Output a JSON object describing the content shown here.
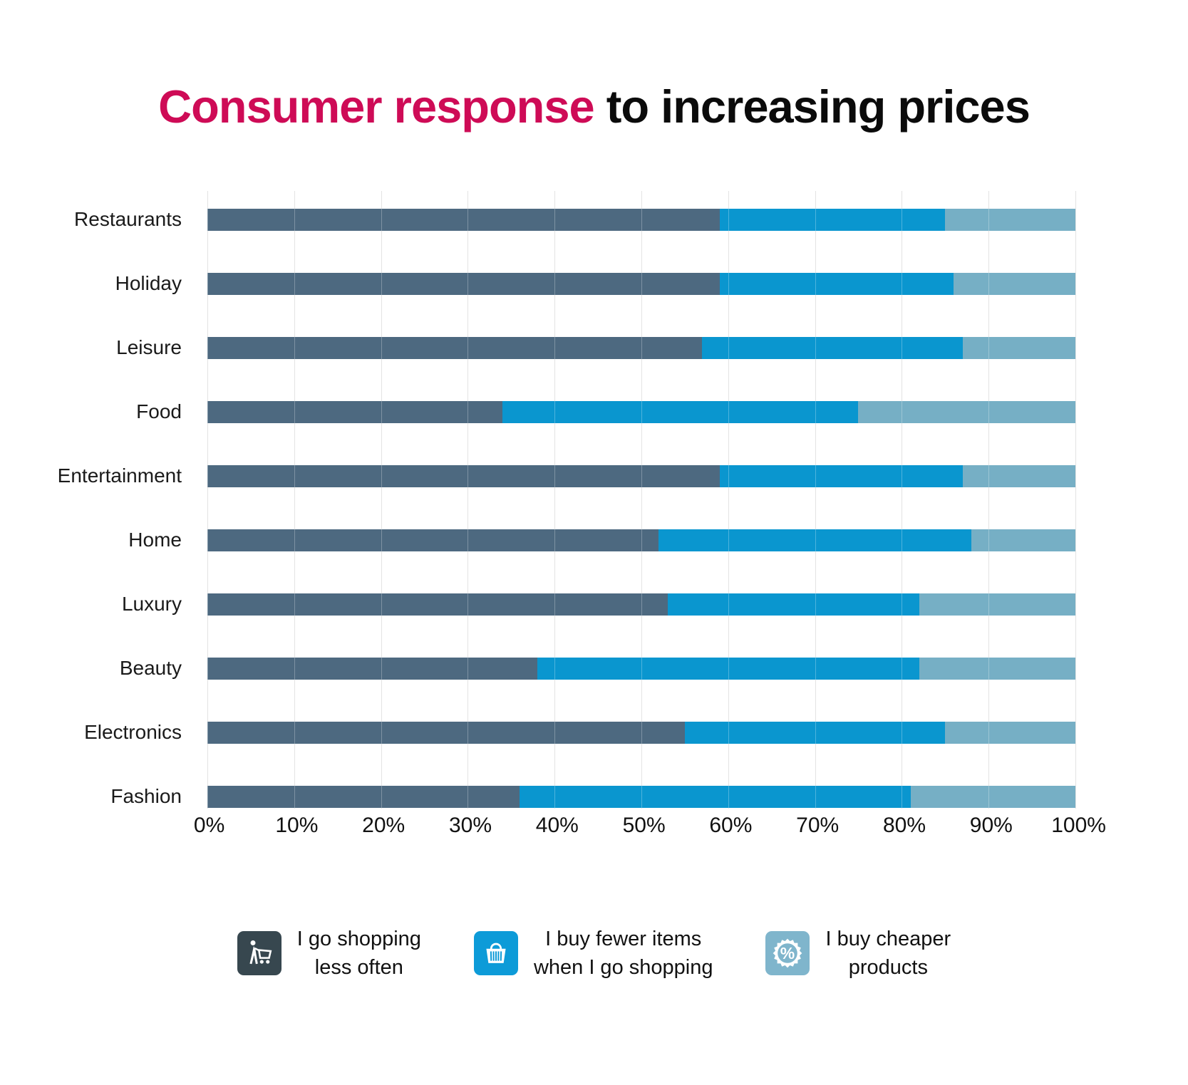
{
  "title": {
    "highlight": "Consumer response ",
    "rest": "to increasing prices"
  },
  "chart_data": {
    "type": "bar",
    "orientation": "horizontal",
    "stacked": true,
    "unit": "%",
    "title": "Consumer response to increasing prices",
    "categories": [
      "Restaurants",
      "Holiday",
      "Leisure",
      "Food",
      "Entertainment",
      "Home",
      "Luxury",
      "Beauty",
      "Electronics",
      "Fashion"
    ],
    "series": [
      {
        "name": "I go shopping less often",
        "color": "#4D6980",
        "values": [
          59,
          59,
          57,
          34,
          59,
          52,
          53,
          38,
          55,
          36
        ]
      },
      {
        "name": "I buy fewer items when I go shopping",
        "color": "#0A96CF",
        "values": [
          26,
          27,
          30,
          41,
          28,
          36,
          29,
          44,
          30,
          45
        ]
      },
      {
        "name": "I buy cheaper products",
        "color": "#76AFC5",
        "values": [
          15,
          14,
          13,
          25,
          13,
          12,
          18,
          18,
          15,
          19
        ]
      }
    ],
    "x_ticks": [
      "0%",
      "10%",
      "20%",
      "30%",
      "40%",
      "50%",
      "60%",
      "70%",
      "80%",
      "90%",
      "100%"
    ],
    "xlim": [
      0,
      100
    ],
    "grid": true,
    "legend_position": "bottom"
  },
  "legend": {
    "items": [
      {
        "icon": "person-cart-icon",
        "color": "#37474F",
        "label_line1": "I go shopping",
        "label_line2": "less often"
      },
      {
        "icon": "basket-icon",
        "color": "#0D9BD8",
        "label_line1": "I buy fewer items",
        "label_line2": "when I go shopping"
      },
      {
        "icon": "percent-badge-icon",
        "color": "#7FB5CC",
        "label_line1": "I buy cheaper",
        "label_line2": "products"
      }
    ]
  }
}
